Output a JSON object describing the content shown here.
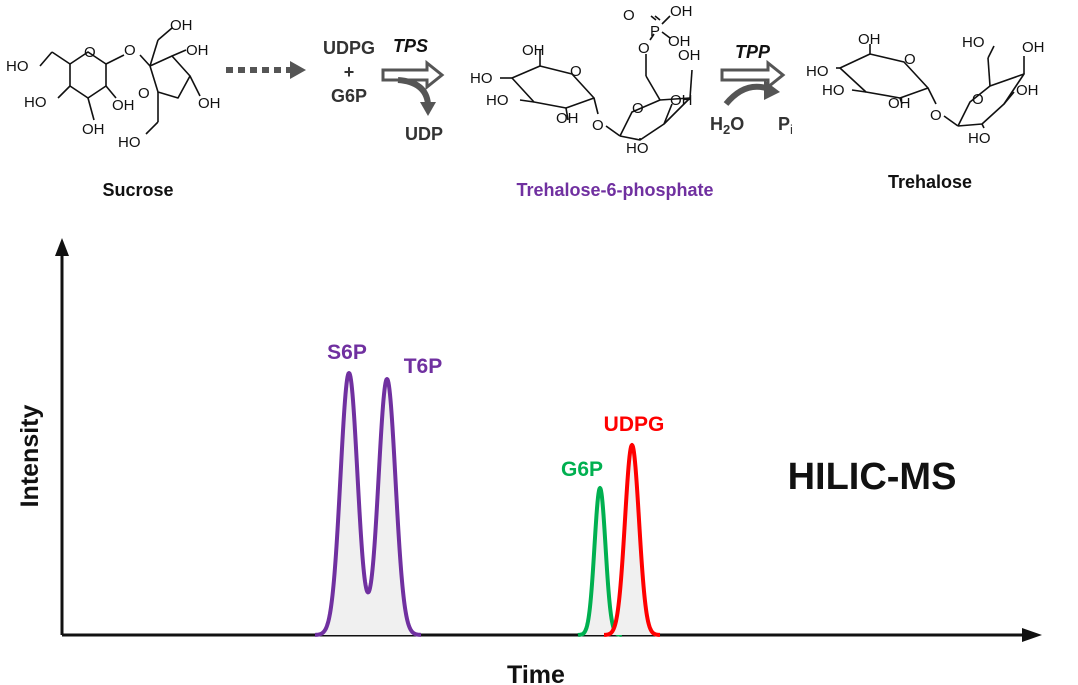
{
  "compounds": {
    "sucrose": "Sucrose",
    "t6p": "Trehalose-6-phosphate",
    "trehalose": "Trehalose"
  },
  "reaction1": {
    "enzyme": "TPS",
    "substrate_1": "UDPG",
    "plus": "+",
    "substrate_2": "G6P",
    "product": "UDP"
  },
  "reaction2": {
    "enzyme": "TPP",
    "water": "H",
    "water_sub": "2",
    "water_o": "O",
    "pi": "P",
    "pi_sub": "i"
  },
  "atoms": {
    "oh": "OH",
    "ho": "HO",
    "o": "O",
    "p": "P"
  },
  "chromatogram": {
    "title": "HILIC-MS",
    "xlabel": "Time",
    "ylabel": "Intensity",
    "peaks": [
      {
        "name": "S6P",
        "time": 349,
        "height": 262,
        "width": 8.5,
        "color": "#7030a0"
      },
      {
        "name": "T6P",
        "time": 387,
        "height": 256,
        "width": 8.5,
        "color": "#7030a0"
      },
      {
        "name": "G6P",
        "time": 600,
        "height": 147,
        "width": 5.5,
        "color": "#00b050"
      },
      {
        "name": "UDPG",
        "time": 632,
        "height": 190,
        "width": 7,
        "color": "#ff0000"
      }
    ],
    "fill_color": "#f0f0f0"
  },
  "colors": {
    "purple": "#7030a0",
    "green": "#00b050",
    "red": "#ff0000",
    "arrow_gray": "#555555",
    "text_dark": "#111111"
  }
}
